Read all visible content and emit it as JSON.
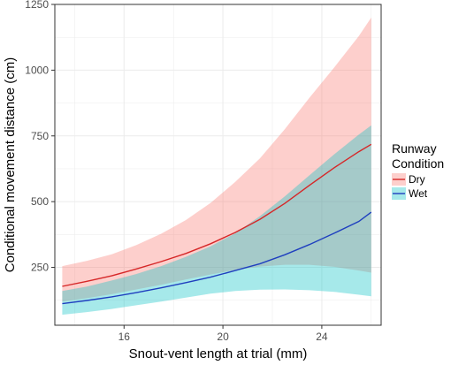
{
  "chart_data": {
    "type": "line",
    "title": "",
    "xlabel": "Snout-vent length at trial (mm)",
    "ylabel": "Conditional movement distance (cm)",
    "xlim": [
      13.2,
      26.4
    ],
    "ylim": [
      30,
      1250
    ],
    "x_ticks": [
      16,
      20,
      24
    ],
    "y_ticks": [
      250,
      500,
      750,
      1000,
      1250
    ],
    "x": [
      13.5,
      14.5,
      15.5,
      16.5,
      17.5,
      18.5,
      19.5,
      20.5,
      21.5,
      22.5,
      23.5,
      24.5,
      25.5,
      26.0
    ],
    "series": [
      {
        "name": "Dry",
        "color": "#d62728",
        "band_color": "#f8766d",
        "values": [
          178,
          197,
          218,
          244,
          272,
          303,
          340,
          383,
          433,
          493,
          562,
          629,
          690,
          718
        ],
        "lower": [
          120,
          133,
          148,
          166,
          184,
          204,
          223,
          240,
          253,
          260,
          260,
          252,
          238,
          230
        ],
        "upper": [
          255,
          275,
          300,
          335,
          378,
          430,
          495,
          575,
          665,
          775,
          895,
          1010,
          1130,
          1200
        ]
      },
      {
        "name": "Wet",
        "color": "#1f3fbf",
        "band_color": "#00bfc4",
        "values": [
          112,
          124,
          138,
          154,
          172,
          192,
          213,
          238,
          264,
          298,
          337,
          380,
          425,
          460
        ],
        "lower": [
          70,
          80,
          92,
          106,
          120,
          135,
          150,
          160,
          165,
          166,
          163,
          157,
          146,
          140
        ],
        "upper": [
          160,
          177,
          200,
          225,
          255,
          290,
          330,
          380,
          445,
          520,
          600,
          680,
          755,
          790
        ]
      }
    ],
    "legend": {
      "title_lines": [
        "Runway",
        "Condition"
      ],
      "position": "right",
      "items": [
        "Dry",
        "Wet"
      ]
    },
    "grid": true,
    "background": "#ffffff",
    "grid_color": "#ebebeb",
    "panel_border_color": "#333333"
  }
}
